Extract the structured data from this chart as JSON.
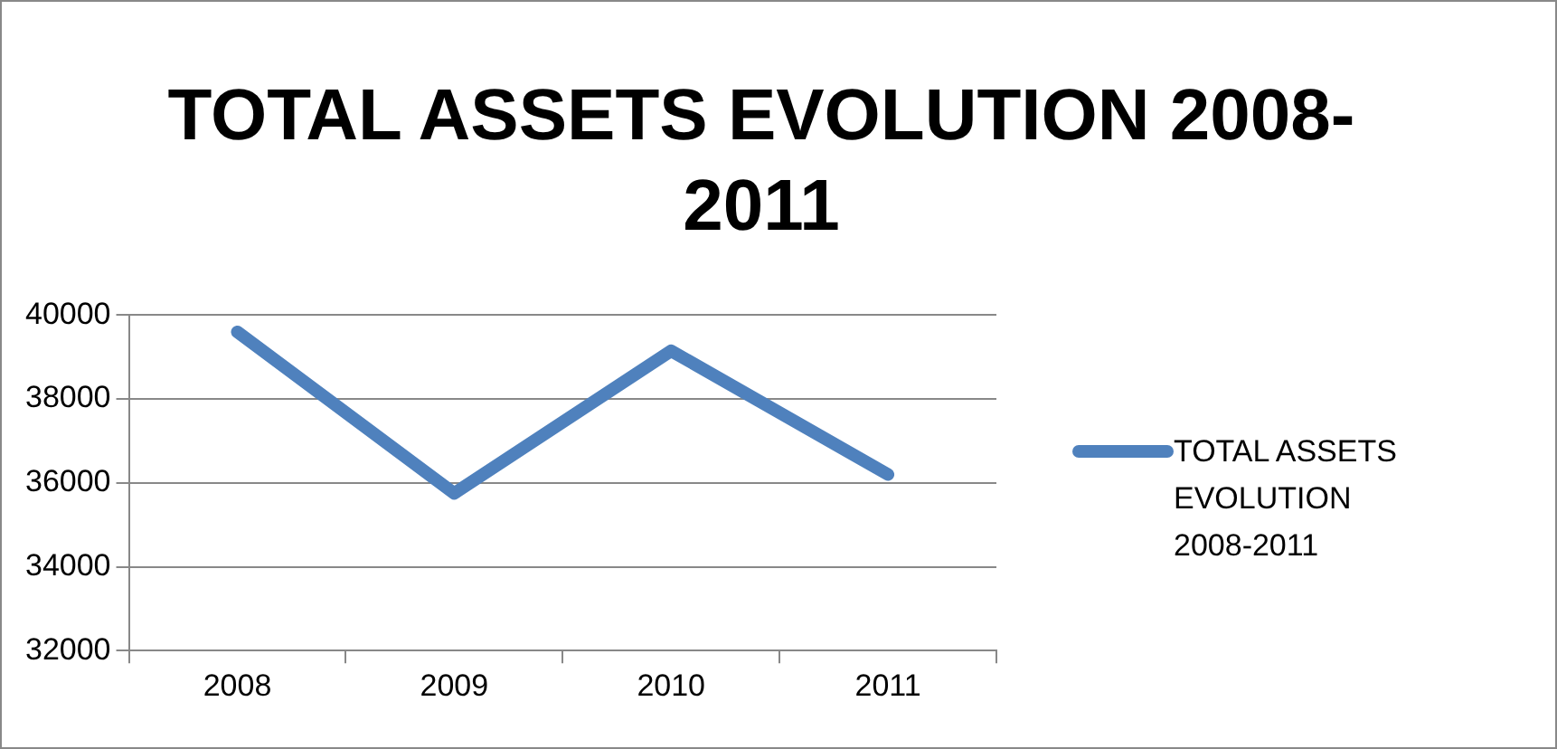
{
  "chart_data": {
    "type": "line",
    "title": "TOTAL ASSETS EVOLUTION 2008-2011",
    "categories": [
      "2008",
      "2009",
      "2010",
      "2011"
    ],
    "series": [
      {
        "name": "TOTAL ASSETS EVOLUTION 2008-2011",
        "color": "#4f81bd",
        "values": [
          39600,
          35750,
          39150,
          36200
        ]
      }
    ],
    "ylim": [
      32000,
      40000
    ],
    "yticks": [
      32000,
      34000,
      36000,
      38000,
      40000
    ],
    "grid": "y",
    "legend": "right",
    "marker": "none",
    "line_style": "solid"
  }
}
